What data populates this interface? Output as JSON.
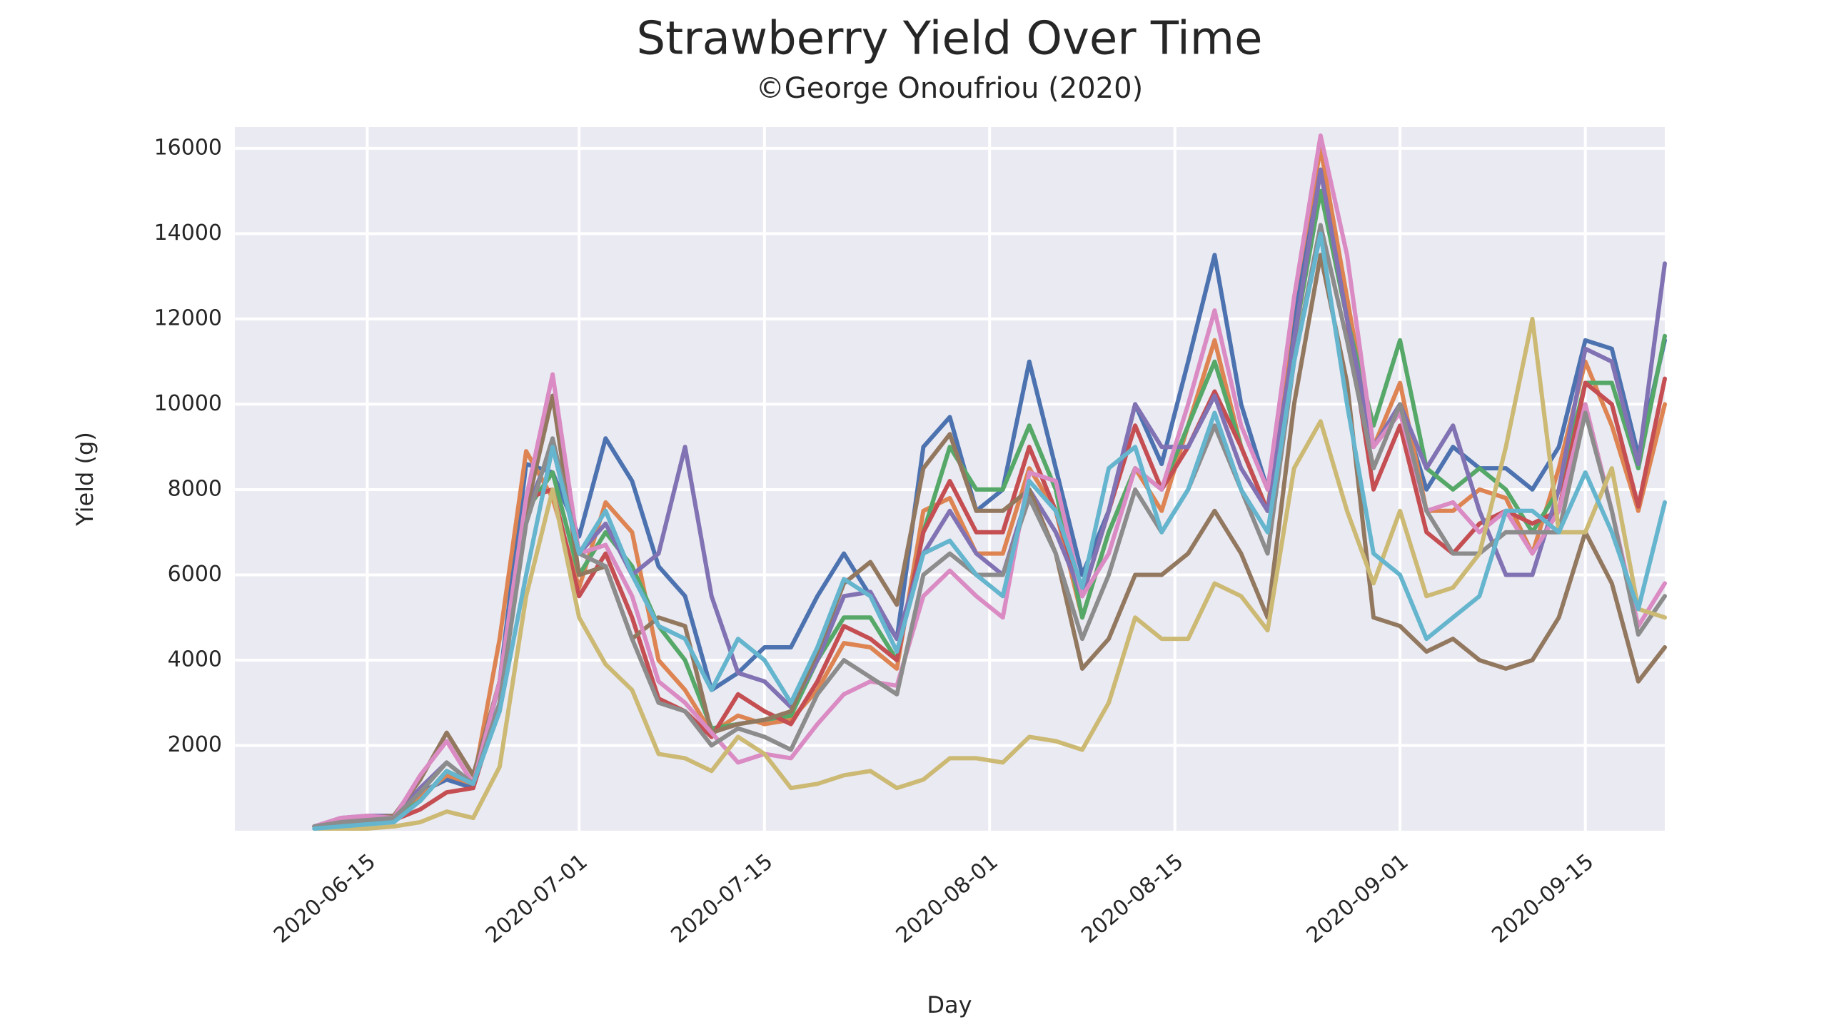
{
  "chart_data": {
    "type": "line",
    "title": "Strawberry Yield Over Time",
    "subtitle": "©George Onoufriou (2020)",
    "x_label": "Day",
    "y_label": "Yield (g)",
    "grid": true,
    "xlim": [
      "2020-06-05",
      "2020-09-21"
    ],
    "xticks": [
      "2020-06-15",
      "2020-07-01",
      "2020-07-15",
      "2020-08-01",
      "2020-08-15",
      "2020-09-01",
      "2020-09-15"
    ],
    "ylim": [
      0,
      16500
    ],
    "yticks": [
      2000,
      4000,
      6000,
      8000,
      10000,
      12000,
      14000,
      16000
    ],
    "x": [
      "2020-06-11",
      "2020-06-13",
      "2020-06-15",
      "2020-06-17",
      "2020-06-19",
      "2020-06-21",
      "2020-06-23",
      "2020-06-25",
      "2020-06-27",
      "2020-06-29",
      "2020-07-01",
      "2020-07-03",
      "2020-07-05",
      "2020-07-07",
      "2020-07-09",
      "2020-07-11",
      "2020-07-13",
      "2020-07-15",
      "2020-07-17",
      "2020-07-19",
      "2020-07-21",
      "2020-07-23",
      "2020-07-25",
      "2020-07-27",
      "2020-07-29",
      "2020-07-31",
      "2020-08-02",
      "2020-08-04",
      "2020-08-06",
      "2020-08-08",
      "2020-08-10",
      "2020-08-12",
      "2020-08-14",
      "2020-08-16",
      "2020-08-18",
      "2020-08-20",
      "2020-08-22",
      "2020-08-24",
      "2020-08-26",
      "2020-08-28",
      "2020-08-30",
      "2020-09-01",
      "2020-09-03",
      "2020-09-05",
      "2020-09-07",
      "2020-09-09",
      "2020-09-11",
      "2020-09-13",
      "2020-09-15",
      "2020-09-17",
      "2020-09-19",
      "2020-09-21"
    ],
    "series": [
      {
        "color": "#4c72b0",
        "values": [
          100,
          250,
          300,
          350,
          900,
          1200,
          1000,
          3500,
          8600,
          8400,
          6900,
          9200,
          8200,
          6200,
          5500,
          3300,
          3700,
          4300,
          4300,
          5500,
          6500,
          5500,
          4500,
          9000,
          9700,
          7500,
          8000,
          11000,
          8500,
          6000,
          7500,
          10000,
          8600,
          11000,
          13500,
          10000,
          8000,
          12000,
          15500,
          12000,
          9000,
          10000,
          8000,
          9000,
          8500,
          8500,
          8000,
          9000,
          11500,
          11300,
          8800,
          11500
        ]
      },
      {
        "color": "#dd8452",
        "values": [
          100,
          200,
          250,
          300,
          800,
          1300,
          1100,
          4500,
          8900,
          7800,
          5700,
          7700,
          7000,
          4000,
          3300,
          2300,
          2700,
          2500,
          2600,
          3300,
          4400,
          4300,
          3800,
          7500,
          7800,
          6500,
          6500,
          8500,
          7500,
          5000,
          7000,
          8500,
          7500,
          9500,
          11500,
          9000,
          7500,
          12500,
          16000,
          12500,
          9000,
          10500,
          7500,
          7500,
          8000,
          7800,
          6500,
          8500,
          11000,
          9500,
          7500,
          10000
        ]
      },
      {
        "color": "#55a868",
        "values": [
          100,
          200,
          250,
          300,
          700,
          1400,
          1100,
          3500,
          7500,
          8400,
          6000,
          7000,
          6200,
          4800,
          4000,
          2400,
          2500,
          2600,
          2700,
          4000,
          5000,
          5000,
          4000,
          7000,
          9000,
          8000,
          8000,
          9500,
          8000,
          5000,
          7000,
          8500,
          8000,
          9500,
          11000,
          9000,
          7500,
          11500,
          15000,
          12000,
          9500,
          11500,
          8500,
          8000,
          8500,
          8000,
          7000,
          8000,
          10500,
          10500,
          8500,
          11600
        ]
      },
      {
        "color": "#c44e52",
        "values": [
          100,
          200,
          250,
          250,
          500,
          900,
          1000,
          3000,
          7800,
          8000,
          5500,
          6500,
          5000,
          3100,
          2800,
          2200,
          3200,
          2800,
          2500,
          3500,
          4800,
          4500,
          4000,
          7000,
          8200,
          7000,
          7000,
          9000,
          7500,
          5500,
          7500,
          9500,
          8000,
          9000,
          10300,
          9000,
          7500,
          11500,
          15500,
          12000,
          8000,
          9500,
          7000,
          6500,
          7200,
          7500,
          7200,
          7500,
          10500,
          10000,
          7600,
          10600
        ]
      },
      {
        "color": "#8172b3",
        "values": [
          100,
          300,
          350,
          350,
          1000,
          1600,
          1100,
          3500,
          7500,
          9000,
          6500,
          7200,
          6000,
          6500,
          9000,
          5500,
          3700,
          3500,
          2900,
          4000,
          5500,
          5600,
          4500,
          6500,
          7500,
          6500,
          6000,
          8000,
          7000,
          5500,
          7500,
          10000,
          9000,
          9000,
          10200,
          8500,
          7500,
          11500,
          15500,
          12000,
          9000,
          10000,
          8500,
          9500,
          7500,
          6000,
          6000,
          8000,
          11300,
          11000,
          8600,
          13300
        ]
      },
      {
        "color": "#937860",
        "values": [
          100,
          250,
          300,
          350,
          1200,
          2300,
          1300,
          3500,
          7500,
          10200,
          6000,
          6200,
          4500,
          5000,
          4800,
          2300,
          2500,
          2600,
          2800,
          4200,
          5800,
          6300,
          5300,
          8500,
          9300,
          7500,
          7500,
          8000,
          6500,
          3800,
          4500,
          6000,
          6000,
          6500,
          7500,
          6500,
          5000,
          10000,
          13500,
          10500,
          5000,
          4800,
          4200,
          4500,
          4000,
          3800,
          4000,
          5000,
          7000,
          5800,
          3500,
          4300
        ]
      },
      {
        "color": "#da8bc3",
        "values": [
          100,
          300,
          350,
          300,
          1300,
          2100,
          1100,
          3500,
          7800,
          10700,
          6500,
          6700,
          5500,
          3500,
          3000,
          2300,
          1600,
          1800,
          1700,
          2500,
          3200,
          3500,
          3400,
          5500,
          6100,
          5500,
          5000,
          8400,
          8200,
          5500,
          6500,
          8500,
          8000,
          10000,
          12200,
          9500,
          8000,
          12500,
          16300,
          13500,
          9000,
          9800,
          7500,
          7700,
          7000,
          7500,
          6500,
          7500,
          10000,
          7500,
          4800,
          5800
        ]
      },
      {
        "color": "#8c8c8c",
        "values": [
          100,
          200,
          250,
          300,
          900,
          1600,
          1100,
          3000,
          7200,
          9200,
          6500,
          6200,
          4500,
          3000,
          2800,
          2000,
          2400,
          2200,
          1900,
          3200,
          4000,
          3600,
          3200,
          6000,
          6500,
          6000,
          6000,
          7800,
          6500,
          4500,
          6000,
          8000,
          7000,
          8000,
          9500,
          8000,
          6500,
          11000,
          14200,
          11500,
          8500,
          10000,
          7500,
          6500,
          6500,
          7000,
          7000,
          7000,
          9800,
          7500,
          4600,
          5500
        ]
      },
      {
        "color": "#ccb974",
        "values": [
          50,
          50,
          50,
          100,
          200,
          450,
          300,
          1500,
          5500,
          8000,
          5000,
          3900,
          3300,
          1800,
          1700,
          1400,
          2200,
          1800,
          1000,
          1100,
          1300,
          1400,
          1000,
          1200,
          1700,
          1700,
          1600,
          2200,
          2100,
          1900,
          3000,
          5000,
          4500,
          4500,
          5800,
          5500,
          4700,
          8500,
          9600,
          7500,
          5800,
          7500,
          5500,
          5700,
          6500,
          9000,
          12000,
          7000,
          7000,
          8500,
          5200,
          5000
        ]
      },
      {
        "color": "#64b5cd",
        "values": [
          50,
          100,
          150,
          200,
          700,
          1400,
          1100,
          2800,
          6000,
          9000,
          6500,
          7500,
          6000,
          4800,
          4500,
          3300,
          4500,
          4000,
          3000,
          4300,
          5900,
          5500,
          4200,
          6500,
          6800,
          6000,
          5500,
          8200,
          7500,
          5700,
          8500,
          9000,
          7000,
          8000,
          9800,
          8000,
          7000,
          11000,
          14000,
          10000,
          6500,
          6000,
          4500,
          5000,
          5500,
          7500,
          7500,
          7000,
          8400,
          7000,
          5200,
          7700
        ]
      }
    ]
  }
}
